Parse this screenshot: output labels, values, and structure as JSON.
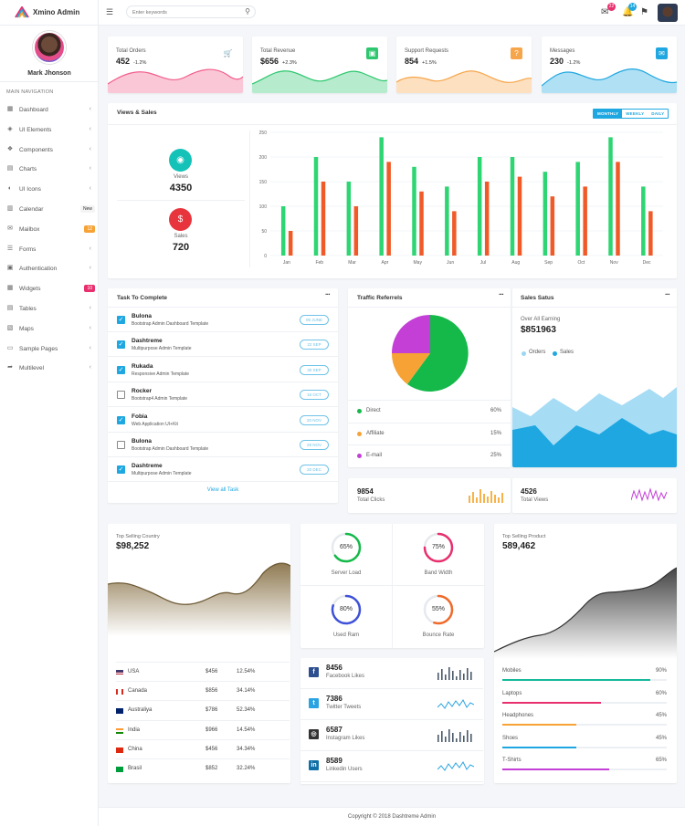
{
  "brand": {
    "name": "Xmino Admin"
  },
  "profile": {
    "name": "Mark Jhonson"
  },
  "nav": {
    "label": "MAIN NAVIGATION",
    "items": [
      {
        "label": "Dashboard",
        "icon": "dashboard-icon"
      },
      {
        "label": "UI Elements",
        "icon": "layers-icon"
      },
      {
        "label": "Components",
        "icon": "components-icon"
      },
      {
        "label": "Charts",
        "icon": "chart-icon"
      },
      {
        "label": "UI Icons",
        "icon": "icons-icon"
      },
      {
        "label": "Calendar",
        "icon": "calendar-icon",
        "badge": "New"
      },
      {
        "label": "Mailbox",
        "icon": "mail-icon",
        "badge": "12"
      },
      {
        "label": "Forms",
        "icon": "forms-icon"
      },
      {
        "label": "Authentication",
        "icon": "lock-icon"
      },
      {
        "label": "Widgets",
        "icon": "widgets-icon",
        "badge": "10"
      },
      {
        "label": "Tables",
        "icon": "table-icon"
      },
      {
        "label": "Maps",
        "icon": "map-icon"
      },
      {
        "label": "Sample Pages",
        "icon": "pages-icon"
      },
      {
        "label": "Multilevel",
        "icon": "share-icon"
      }
    ]
  },
  "topbar": {
    "search_placeholder": "Enter keywords",
    "mail_count": "22",
    "notification_count": "14"
  },
  "stats": [
    {
      "title": "Total Orders",
      "value": "452",
      "change": "-1.2%",
      "color": "#f25f8c"
    },
    {
      "title": "Total Revenue",
      "value": "$656",
      "change": "+2.3%",
      "color": "#2ec76f"
    },
    {
      "title": "Support Requests",
      "value": "854",
      "change": "+1.5%",
      "color": "#f7a54a"
    },
    {
      "title": "Messages",
      "value": "230",
      "change": "-1.2%",
      "color": "#1ea7e0"
    }
  ],
  "views_sales": {
    "title": "Views & Sales",
    "periods": [
      "MONTHLY",
      "WEEKLY",
      "DAILY"
    ],
    "views_label": "Views",
    "views_value": "4350",
    "sales_label": "Sales",
    "sales_value": "720"
  },
  "tasks": {
    "title": "Task To Complete",
    "items": [
      {
        "name": "Bulona",
        "desc": "Bootstrap Admin Dashboard Template",
        "tag": "06 JUNE",
        "checked": true
      },
      {
        "name": "Dashtreme",
        "desc": "Multipurpose Admin Template",
        "tag": "22 SEP",
        "checked": true
      },
      {
        "name": "Rukada",
        "desc": "Responsive Admin Template",
        "tag": "30 SEP",
        "checked": true
      },
      {
        "name": "Rocker",
        "desc": "Bootstrap4 Admin Template",
        "tag": "16 OCT",
        "checked": false
      },
      {
        "name": "Fobia",
        "desc": "Web Application UI+Kit",
        "tag": "20 NOV",
        "checked": true
      },
      {
        "name": "Bulona",
        "desc": "Bootstrap Admin Dashboard Template",
        "tag": "28 NOV",
        "checked": false
      },
      {
        "name": "Dashtreme",
        "desc": "Multipurpose Admin Template",
        "tag": "20 DEC",
        "checked": true
      }
    ],
    "view_all": "View all Task"
  },
  "traffic": {
    "title": "Traffic Referrels",
    "rows": [
      {
        "label": "Direct",
        "value": "60%",
        "color": "#14b94a"
      },
      {
        "label": "Affiliate",
        "value": "15%",
        "color": "#f7a234"
      },
      {
        "label": "E-mail",
        "value": "25%",
        "color": "#c33fd6"
      }
    ]
  },
  "sales_status": {
    "title": "Sales Satus",
    "subtitle": "Over All Earning",
    "value": "$851963",
    "legend": [
      "Orders",
      "Sales"
    ]
  },
  "mini": [
    {
      "value": "9854",
      "label": "Total Clicks"
    },
    {
      "value": "4526",
      "label": "Total Views"
    }
  ],
  "country": {
    "title": "Top Selling Country",
    "value": "$98,252",
    "rows": [
      {
        "name": "USA",
        "amount": "$456",
        "pct": "12.54%"
      },
      {
        "name": "Canada",
        "amount": "$856",
        "pct": "34.14%"
      },
      {
        "name": "Australiya",
        "amount": "$786",
        "pct": "52.34%"
      },
      {
        "name": "India",
        "amount": "$966",
        "pct": "14.54%"
      },
      {
        "name": "China",
        "amount": "$456",
        "pct": "34.34%"
      },
      {
        "name": "Brasil",
        "amount": "$852",
        "pct": "32.24%"
      }
    ]
  },
  "gauges": [
    {
      "value": "65%",
      "label": "Server Load",
      "color": "#14b94a",
      "pct": 65
    },
    {
      "value": "75%",
      "label": "Band Width",
      "color": "#e8306e",
      "pct": 75
    },
    {
      "value": "80%",
      "label": "Used Ram",
      "color": "#3f51d8",
      "pct": 80
    },
    {
      "value": "55%",
      "label": "Bounce Rate",
      "color": "#f06a2a",
      "pct": 55
    }
  ],
  "social": [
    {
      "value": "8456",
      "label": "Facebook Likes",
      "icon": "facebook-icon",
      "color": "#2d4e8f"
    },
    {
      "value": "7386",
      "label": "Twitter Tweets",
      "icon": "twitter-icon",
      "color": "#2aa3e2"
    },
    {
      "value": "6587",
      "label": "Instagram Likes",
      "icon": "instagram-icon",
      "color": "#333333"
    },
    {
      "value": "8589",
      "label": "Linkedin Users",
      "icon": "linkedin-icon",
      "color": "#0f6fa7"
    }
  ],
  "product": {
    "title": "Top Selling Product",
    "value": "589,462",
    "rows": [
      {
        "name": "Mobiles",
        "value": "90%",
        "pct": 90,
        "color": "#14b99a"
      },
      {
        "name": "Laptops",
        "value": "60%",
        "pct": 60,
        "color": "#e8306e"
      },
      {
        "name": "Headphones",
        "value": "45%",
        "pct": 45,
        "color": "#f7a234"
      },
      {
        "name": "Shoes",
        "value": "45%",
        "pct": 45,
        "color": "#1ea7e0"
      },
      {
        "name": "T-Shirts",
        "value": "65%",
        "pct": 65,
        "color": "#c33fd6"
      }
    ]
  },
  "footer": {
    "text": "Copyright © 2018 Dashtreme Admin"
  },
  "chart_data": {
    "type": "bar",
    "categories": [
      "Jan",
      "Feb",
      "Mar",
      "Apr",
      "May",
      "Jun",
      "Jul",
      "Aug",
      "Sep",
      "Oct",
      "Nov",
      "Dec"
    ],
    "ylim": [
      0,
      250
    ],
    "yticks": [
      0,
      50,
      100,
      150,
      200,
      250
    ],
    "grid": true,
    "series": [
      {
        "values": [
          100,
          200,
          150,
          240,
          180,
          140,
          200,
          200,
          170,
          190,
          240,
          140
        ],
        "color": "#2ed573"
      },
      {
        "values": [
          50,
          150,
          100,
          190,
          130,
          90,
          150,
          160,
          120,
          140,
          190,
          90
        ],
        "color": "#f05a28"
      }
    ]
  }
}
